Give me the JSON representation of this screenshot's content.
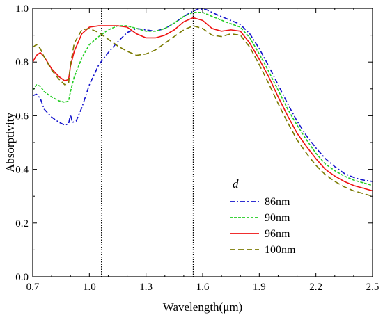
{
  "chart_data": {
    "type": "line",
    "xlabel": "Wavelength(μm)",
    "ylabel": "Absorptivity",
    "xlim": [
      0.7,
      2.5
    ],
    "ylim": [
      0.0,
      1.0
    ],
    "x_ticks": [
      "0.7",
      "1.0",
      "1.3",
      "1.6",
      "1.9",
      "2.2",
      "2.5"
    ],
    "y_ticks": [
      "0.0",
      "0.2",
      "0.4",
      "0.6",
      "0.8",
      "1.0"
    ],
    "grid": false,
    "legend": {
      "title": "d",
      "placement": "bottom-right"
    },
    "vertical_lines": [
      1.064,
      1.55
    ],
    "series": [
      {
        "name": "86nm",
        "color": "#1010cc",
        "dash": "dashdot",
        "points": [
          [
            0.7,
            0.675
          ],
          [
            0.72,
            0.68
          ],
          [
            0.74,
            0.665
          ],
          [
            0.76,
            0.625
          ],
          [
            0.8,
            0.595
          ],
          [
            0.84,
            0.575
          ],
          [
            0.87,
            0.565
          ],
          [
            0.89,
            0.57
          ],
          [
            0.9,
            0.605
          ],
          [
            0.91,
            0.575
          ],
          [
            0.93,
            0.58
          ],
          [
            0.96,
            0.63
          ],
          [
            1.0,
            0.715
          ],
          [
            1.05,
            0.79
          ],
          [
            1.1,
            0.835
          ],
          [
            1.15,
            0.875
          ],
          [
            1.2,
            0.91
          ],
          [
            1.25,
            0.925
          ],
          [
            1.3,
            0.92
          ],
          [
            1.35,
            0.915
          ],
          [
            1.4,
            0.925
          ],
          [
            1.45,
            0.945
          ],
          [
            1.5,
            0.97
          ],
          [
            1.55,
            0.99
          ],
          [
            1.58,
            0.998
          ],
          [
            1.62,
            0.995
          ],
          [
            1.68,
            0.975
          ],
          [
            1.75,
            0.955
          ],
          [
            1.8,
            0.94
          ],
          [
            1.85,
            0.905
          ],
          [
            1.9,
            0.85
          ],
          [
            1.95,
            0.785
          ],
          [
            2.0,
            0.715
          ],
          [
            2.05,
            0.645
          ],
          [
            2.1,
            0.58
          ],
          [
            2.15,
            0.525
          ],
          [
            2.2,
            0.48
          ],
          [
            2.25,
            0.44
          ],
          [
            2.3,
            0.41
          ],
          [
            2.35,
            0.385
          ],
          [
            2.4,
            0.37
          ],
          [
            2.45,
            0.36
          ],
          [
            2.5,
            0.355
          ]
        ]
      },
      {
        "name": "90nm",
        "color": "#22cc22",
        "dash": "dashed-fine",
        "points": [
          [
            0.7,
            0.695
          ],
          [
            0.72,
            0.715
          ],
          [
            0.74,
            0.71
          ],
          [
            0.76,
            0.69
          ],
          [
            0.8,
            0.67
          ],
          [
            0.84,
            0.655
          ],
          [
            0.87,
            0.65
          ],
          [
            0.89,
            0.655
          ],
          [
            0.9,
            0.69
          ],
          [
            0.92,
            0.745
          ],
          [
            0.96,
            0.815
          ],
          [
            1.0,
            0.865
          ],
          [
            1.05,
            0.895
          ],
          [
            1.1,
            0.92
          ],
          [
            1.15,
            0.935
          ],
          [
            1.2,
            0.935
          ],
          [
            1.25,
            0.925
          ],
          [
            1.3,
            0.915
          ],
          [
            1.35,
            0.915
          ],
          [
            1.4,
            0.925
          ],
          [
            1.45,
            0.945
          ],
          [
            1.5,
            0.97
          ],
          [
            1.55,
            0.985
          ],
          [
            1.6,
            0.985
          ],
          [
            1.65,
            0.97
          ],
          [
            1.72,
            0.95
          ],
          [
            1.8,
            0.93
          ],
          [
            1.85,
            0.89
          ],
          [
            1.9,
            0.83
          ],
          [
            1.95,
            0.765
          ],
          [
            2.0,
            0.695
          ],
          [
            2.05,
            0.625
          ],
          [
            2.1,
            0.565
          ],
          [
            2.15,
            0.51
          ],
          [
            2.2,
            0.46
          ],
          [
            2.25,
            0.42
          ],
          [
            2.3,
            0.395
          ],
          [
            2.35,
            0.375
          ],
          [
            2.4,
            0.36
          ],
          [
            2.45,
            0.35
          ],
          [
            2.5,
            0.34
          ]
        ]
      },
      {
        "name": "96nm",
        "color": "#ee1111",
        "dash": "solid",
        "points": [
          [
            0.7,
            0.8
          ],
          [
            0.72,
            0.825
          ],
          [
            0.74,
            0.835
          ],
          [
            0.76,
            0.82
          ],
          [
            0.8,
            0.775
          ],
          [
            0.84,
            0.745
          ],
          [
            0.87,
            0.73
          ],
          [
            0.89,
            0.735
          ],
          [
            0.9,
            0.785
          ],
          [
            0.92,
            0.84
          ],
          [
            0.96,
            0.905
          ],
          [
            1.0,
            0.93
          ],
          [
            1.05,
            0.935
          ],
          [
            1.1,
            0.935
          ],
          [
            1.15,
            0.935
          ],
          [
            1.2,
            0.93
          ],
          [
            1.25,
            0.905
          ],
          [
            1.3,
            0.89
          ],
          [
            1.35,
            0.89
          ],
          [
            1.4,
            0.9
          ],
          [
            1.45,
            0.92
          ],
          [
            1.5,
            0.95
          ],
          [
            1.55,
            0.965
          ],
          [
            1.6,
            0.955
          ],
          [
            1.65,
            0.925
          ],
          [
            1.7,
            0.915
          ],
          [
            1.75,
            0.92
          ],
          [
            1.8,
            0.915
          ],
          [
            1.85,
            0.87
          ],
          [
            1.9,
            0.81
          ],
          [
            1.95,
            0.745
          ],
          [
            2.0,
            0.67
          ],
          [
            2.05,
            0.6
          ],
          [
            2.1,
            0.535
          ],
          [
            2.15,
            0.485
          ],
          [
            2.2,
            0.44
          ],
          [
            2.25,
            0.4
          ],
          [
            2.3,
            0.375
          ],
          [
            2.35,
            0.355
          ],
          [
            2.4,
            0.34
          ],
          [
            2.45,
            0.33
          ],
          [
            2.5,
            0.32
          ]
        ]
      },
      {
        "name": "100nm",
        "color": "#7a7a00",
        "dash": "dashed-long",
        "points": [
          [
            0.7,
            0.855
          ],
          [
            0.72,
            0.865
          ],
          [
            0.74,
            0.85
          ],
          [
            0.76,
            0.82
          ],
          [
            0.8,
            0.77
          ],
          [
            0.84,
            0.735
          ],
          [
            0.87,
            0.715
          ],
          [
            0.89,
            0.72
          ],
          [
            0.9,
            0.79
          ],
          [
            0.92,
            0.87
          ],
          [
            0.96,
            0.92
          ],
          [
            1.0,
            0.925
          ],
          [
            1.05,
            0.91
          ],
          [
            1.1,
            0.885
          ],
          [
            1.15,
            0.86
          ],
          [
            1.2,
            0.84
          ],
          [
            1.25,
            0.825
          ],
          [
            1.3,
            0.83
          ],
          [
            1.35,
            0.845
          ],
          [
            1.4,
            0.87
          ],
          [
            1.45,
            0.895
          ],
          [
            1.5,
            0.92
          ],
          [
            1.55,
            0.935
          ],
          [
            1.6,
            0.925
          ],
          [
            1.65,
            0.9
          ],
          [
            1.7,
            0.895
          ],
          [
            1.75,
            0.905
          ],
          [
            1.8,
            0.9
          ],
          [
            1.85,
            0.855
          ],
          [
            1.9,
            0.79
          ],
          [
            1.95,
            0.72
          ],
          [
            2.0,
            0.645
          ],
          [
            2.05,
            0.575
          ],
          [
            2.1,
            0.51
          ],
          [
            2.15,
            0.46
          ],
          [
            2.2,
            0.415
          ],
          [
            2.25,
            0.38
          ],
          [
            2.3,
            0.355
          ],
          [
            2.35,
            0.335
          ],
          [
            2.4,
            0.32
          ],
          [
            2.45,
            0.31
          ],
          [
            2.5,
            0.3
          ]
        ]
      }
    ]
  }
}
